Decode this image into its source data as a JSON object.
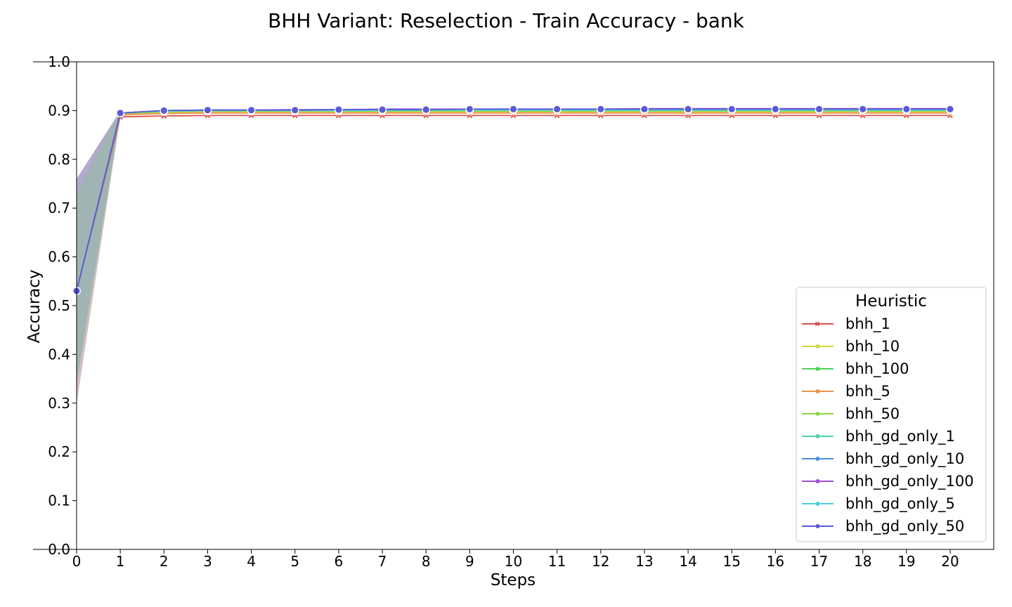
{
  "chart_data": {
    "type": "line",
    "title": "BHH Variant: Reselection - Train Accuracy - bank",
    "xlabel": "Steps",
    "ylabel": "Accuracy",
    "x": [
      0,
      1,
      2,
      3,
      4,
      5,
      6,
      7,
      8,
      9,
      10,
      11,
      12,
      13,
      14,
      15,
      16,
      17,
      18,
      19,
      20
    ],
    "xlim": [
      0,
      21
    ],
    "ylim": [
      0.0,
      1.0
    ],
    "yticks": [
      "0.0",
      "0.1",
      "0.2",
      "0.3",
      "0.4",
      "0.5",
      "0.6",
      "0.7",
      "0.8",
      "0.9",
      "1.0"
    ],
    "xticks": [
      "0",
      "1",
      "2",
      "3",
      "4",
      "5",
      "6",
      "7",
      "8",
      "9",
      "10",
      "11",
      "12",
      "13",
      "14",
      "15",
      "16",
      "17",
      "18",
      "19",
      "20"
    ],
    "legend": {
      "title": "Heuristic",
      "position": "lower-right"
    },
    "grid": false,
    "band": {
      "lower": [
        0.3,
        0.888
      ],
      "upper": [
        0.76,
        0.899
      ],
      "color": "#8fa8a6"
    },
    "series": [
      {
        "name": "bhh_1",
        "color": "#d9504e",
        "marker": "x",
        "values": [
          0.53,
          0.887,
          0.889,
          0.89,
          0.89,
          0.89,
          0.89,
          0.89,
          0.89,
          0.89,
          0.89,
          0.89,
          0.89,
          0.89,
          0.89,
          0.89,
          0.89,
          0.89,
          0.89,
          0.89,
          0.89
        ]
      },
      {
        "name": "bhh_10",
        "color": "#d4d43e",
        "marker": "square",
        "values": [
          0.53,
          0.893,
          0.896,
          0.897,
          0.897,
          0.897,
          0.897,
          0.897,
          0.897,
          0.897,
          0.897,
          0.897,
          0.897,
          0.897,
          0.897,
          0.897,
          0.897,
          0.897,
          0.897,
          0.897,
          0.897
        ]
      },
      {
        "name": "bhh_100",
        "color": "#4fd15a",
        "marker": "square",
        "values": [
          0.53,
          0.895,
          0.899,
          0.9,
          0.9,
          0.9,
          0.901,
          0.901,
          0.901,
          0.901,
          0.901,
          0.901,
          0.901,
          0.901,
          0.901,
          0.901,
          0.901,
          0.901,
          0.901,
          0.901,
          0.901
        ]
      },
      {
        "name": "bhh_5",
        "color": "#e8944a",
        "marker": "square",
        "values": [
          0.53,
          0.891,
          0.894,
          0.895,
          0.895,
          0.895,
          0.895,
          0.895,
          0.895,
          0.895,
          0.895,
          0.895,
          0.895,
          0.895,
          0.895,
          0.895,
          0.895,
          0.895,
          0.895,
          0.895,
          0.895
        ]
      },
      {
        "name": "bhh_50",
        "color": "#8fd64a",
        "marker": "square",
        "values": [
          0.53,
          0.894,
          0.898,
          0.899,
          0.899,
          0.899,
          0.899,
          0.899,
          0.899,
          0.899,
          0.899,
          0.899,
          0.899,
          0.899,
          0.899,
          0.899,
          0.899,
          0.899,
          0.899,
          0.899,
          0.899
        ]
      },
      {
        "name": "bhh_gd_only_1",
        "color": "#4fd6a0",
        "marker": "circle",
        "values": [
          0.53,
          0.895,
          0.899,
          0.9,
          0.9,
          0.9,
          0.901,
          0.901,
          0.901,
          0.901,
          0.901,
          0.901,
          0.901,
          0.901,
          0.901,
          0.901,
          0.901,
          0.901,
          0.901,
          0.901,
          0.901
        ]
      },
      {
        "name": "bhh_gd_only_10",
        "color": "#4a8fd9",
        "marker": "circle",
        "values": [
          0.53,
          0.895,
          0.9,
          0.901,
          0.901,
          0.901,
          0.902,
          0.902,
          0.902,
          0.902,
          0.902,
          0.902,
          0.902,
          0.902,
          0.902,
          0.902,
          0.902,
          0.902,
          0.902,
          0.902,
          0.902
        ]
      },
      {
        "name": "bhh_gd_only_100",
        "color": "#a04fd6",
        "marker": "circle",
        "values": [
          0.53,
          0.895,
          0.9,
          0.901,
          0.901,
          0.902,
          0.902,
          0.903,
          0.903,
          0.903,
          0.903,
          0.903,
          0.903,
          0.904,
          0.904,
          0.904,
          0.904,
          0.904,
          0.904,
          0.904,
          0.904
        ]
      },
      {
        "name": "bhh_gd_only_5",
        "color": "#4fcfe0",
        "marker": "circle",
        "values": [
          0.53,
          0.895,
          0.899,
          0.9,
          0.9,
          0.9,
          0.9,
          0.9,
          0.901,
          0.901,
          0.901,
          0.901,
          0.901,
          0.901,
          0.901,
          0.901,
          0.901,
          0.901,
          0.901,
          0.901,
          0.901
        ]
      },
      {
        "name": "bhh_gd_only_50",
        "color": "#5a5ad6",
        "marker": "circle",
        "values": [
          0.53,
          0.895,
          0.9,
          0.901,
          0.901,
          0.901,
          0.902,
          0.902,
          0.902,
          0.903,
          0.903,
          0.903,
          0.903,
          0.903,
          0.903,
          0.903,
          0.903,
          0.903,
          0.903,
          0.903,
          0.903
        ]
      }
    ]
  }
}
